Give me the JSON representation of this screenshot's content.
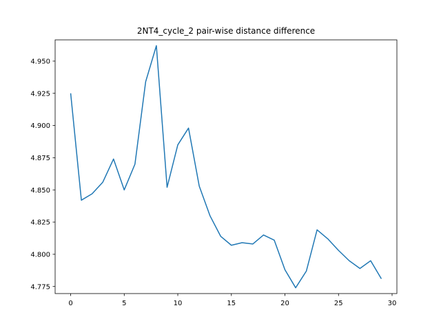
{
  "chart_data": {
    "type": "line",
    "title": "2NT4_cycle_2 pair-wise distance difference",
    "xlabel": "",
    "ylabel": "",
    "xlim": [
      -1.45,
      30.45
    ],
    "ylim": [
      4.7695,
      4.9665
    ],
    "x_ticks": [
      0,
      5,
      10,
      15,
      20,
      25,
      30
    ],
    "y_ticks": [
      4.775,
      4.8,
      4.825,
      4.85,
      4.875,
      4.9,
      4.925,
      4.95
    ],
    "grid": false,
    "series": [
      {
        "color": "#1f77b4",
        "x": [
          0,
          1,
          2,
          3,
          4,
          5,
          6,
          7,
          8,
          9,
          10,
          11,
          12,
          13,
          14,
          15,
          16,
          17,
          18,
          19,
          20,
          21,
          22,
          23,
          24,
          25,
          26,
          27,
          28,
          29
        ],
        "values": [
          4.925,
          4.842,
          4.847,
          4.856,
          4.874,
          4.85,
          4.87,
          4.934,
          4.962,
          4.852,
          4.885,
          4.898,
          4.853,
          4.83,
          4.814,
          4.807,
          4.809,
          4.808,
          4.815,
          4.811,
          4.788,
          4.774,
          4.787,
          4.819,
          4.812,
          4.803,
          4.795,
          4.789,
          4.795,
          4.781
        ]
      }
    ]
  }
}
